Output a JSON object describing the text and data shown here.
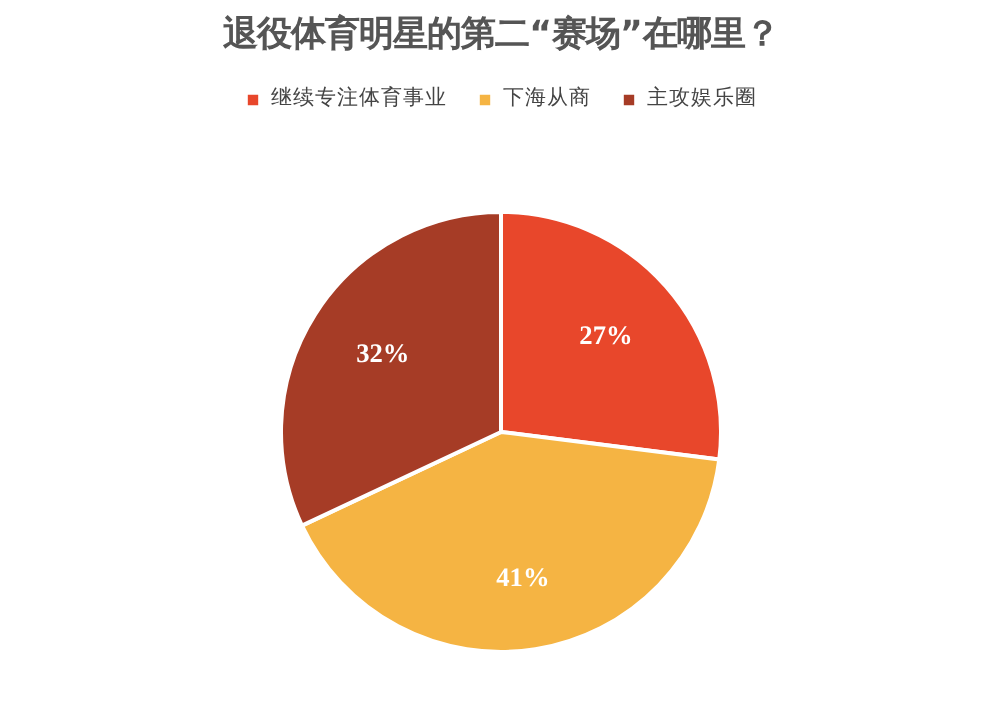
{
  "chart_data": {
    "type": "pie",
    "title": "退役体育明星的第二“赛场”在哪里？",
    "categories": [
      "继续专注体育事业",
      "下海从商",
      "主攻娱乐圈"
    ],
    "values": [
      27,
      41,
      32
    ],
    "colors": [
      "#e8472b",
      "#f5b443",
      "#a63c26"
    ],
    "value_labels": [
      "27%",
      "41%",
      "32%"
    ],
    "legend": "top"
  }
}
